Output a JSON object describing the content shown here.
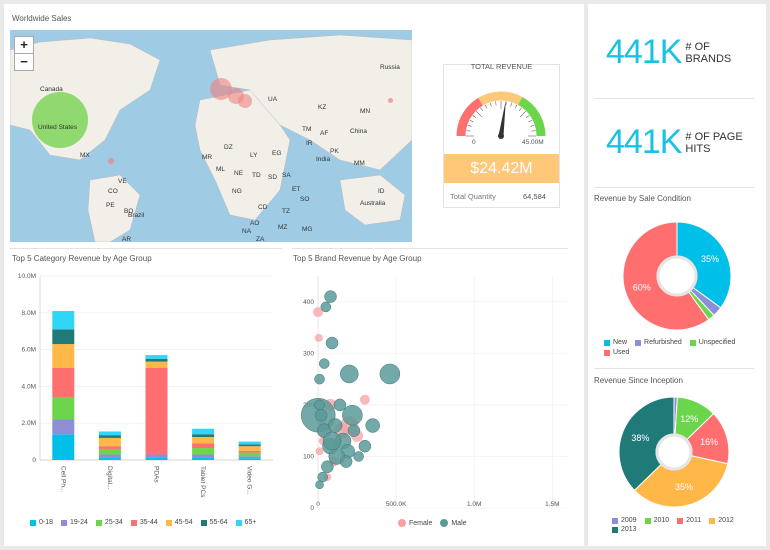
{
  "map_panel": {
    "title": "Worldwide Sales",
    "zoom_in": "+",
    "zoom_out": "−",
    "labels": [
      "Russia",
      "Canada",
      "United States",
      "China",
      "India",
      "Brazil",
      "Australia",
      "DZ",
      "LY",
      "EG",
      "SA",
      "IR",
      "PK",
      "KZ",
      "MN",
      "ML",
      "NE",
      "TD",
      "SD",
      "ET",
      "NG",
      "CD",
      "AO",
      "TZ",
      "ZA",
      "NA",
      "MZ",
      "MG",
      "VE",
      "CO",
      "PE",
      "BO",
      "AR",
      "MX",
      "TM",
      "AF",
      "UA",
      "MM",
      "ID",
      "SO",
      "MR"
    ]
  },
  "gauge": {
    "title": "TOTAL REVENUE",
    "min_label": "0",
    "max_label": "45.00M",
    "value": "$24.42M",
    "value_number": 24.42,
    "max_number": 45,
    "quantity_label": "Total Quantity",
    "quantity_value": "64,584"
  },
  "kpis": [
    {
      "value": "441K",
      "label": "# OF BRANDS"
    },
    {
      "value": "441K",
      "label": "# OF PAGE HITS"
    }
  ],
  "colors": {
    "cyan": "#00bfe8",
    "purple": "#8e8ed6",
    "green": "#6bd64b",
    "red": "#ff6f6f",
    "orange": "#ffb748",
    "teal": "#1f7a78",
    "lightcyan": "#2fd6f6",
    "female": "#f7a1a1",
    "male": "#5a9a99"
  },
  "chart_data": [
    {
      "type": "bar",
      "stacked": true,
      "title": "Top 5 Category Revenue by Age Group",
      "categories": [
        "Cell Ph...",
        "Digital...",
        "PDAs",
        "Tablet PCs",
        "Video G..."
      ],
      "ylim": [
        0,
        10000000
      ],
      "yticks": [
        "0",
        "2.0M",
        "4.0M",
        "6.0M",
        "8.0M",
        "10.0M"
      ],
      "ytick_values": [
        0,
        2000000,
        4000000,
        6000000,
        8000000,
        10000000
      ],
      "series": [
        {
          "name": "0-18",
          "color": "#00bfe8",
          "values": [
            1400000,
            150000,
            150000,
            150000,
            100000
          ]
        },
        {
          "name": "19-24",
          "color": "#8e8ed6",
          "values": [
            800000,
            150000,
            150000,
            150000,
            100000
          ]
        },
        {
          "name": "25-34",
          "color": "#6bd64b",
          "values": [
            1200000,
            300000,
            0,
            350000,
            200000
          ]
        },
        {
          "name": "35-44",
          "color": "#ff6f6f",
          "values": [
            1600000,
            150000,
            4700000,
            250000,
            100000
          ]
        },
        {
          "name": "45-54",
          "color": "#ffb748",
          "values": [
            1300000,
            450000,
            350000,
            350000,
            250000
          ]
        },
        {
          "name": "55-64",
          "color": "#1f7a78",
          "values": [
            800000,
            150000,
            150000,
            150000,
            100000
          ]
        },
        {
          "name": "65+",
          "color": "#2fd6f6",
          "values": [
            1000000,
            200000,
            200000,
            300000,
            150000
          ]
        }
      ]
    },
    {
      "type": "scatter",
      "title": "Top 5 Brand Revenue by Age Group",
      "xlim": [
        0,
        1600000
      ],
      "ylim": [
        0,
        450
      ],
      "xticks": [
        "0",
        "500.0K",
        "1.0M",
        "1.5M"
      ],
      "xtick_values": [
        0,
        500000,
        1000000,
        1500000
      ],
      "yticks": [
        "0",
        "100",
        "200",
        "300",
        "400"
      ],
      "ytick_values": [
        0,
        100,
        200,
        300,
        400
      ],
      "series": [
        {
          "name": "Female",
          "color": "#f7a1a1",
          "points": [
            [
              0,
              380,
              5
            ],
            [
              5,
              330,
              4
            ],
            [
              10,
              200,
              6
            ],
            [
              20,
              170,
              5
            ],
            [
              30,
              130,
              4
            ],
            [
              40,
              150,
              7
            ],
            [
              80,
              200,
              6
            ],
            [
              150,
              150,
              8
            ],
            [
              200,
              160,
              9
            ],
            [
              250,
              140,
              6
            ],
            [
              60,
              60,
              4
            ],
            [
              100,
              90,
              5
            ],
            [
              10,
              110,
              4
            ],
            [
              300,
              210,
              5
            ]
          ]
        },
        {
          "name": "Male",
          "color": "#5a9a99",
          "points": [
            [
              50,
              390,
              5
            ],
            [
              80,
              410,
              6
            ],
            [
              90,
              320,
              6
            ],
            [
              40,
              280,
              5
            ],
            [
              10,
              250,
              5
            ],
            [
              200,
              260,
              9
            ],
            [
              460,
              260,
              10
            ],
            [
              1500,
              180,
              17
            ],
            [
              10,
              200,
              5
            ],
            [
              20,
              180,
              6
            ],
            [
              40,
              150,
              7
            ],
            [
              80,
              120,
              8
            ],
            [
              110,
              160,
              7
            ],
            [
              160,
              130,
              8
            ],
            [
              190,
              110,
              7
            ],
            [
              230,
              150,
              6
            ],
            [
              260,
              100,
              5
            ],
            [
              300,
              120,
              6
            ],
            [
              120,
              100,
              8
            ],
            [
              60,
              80,
              6
            ],
            [
              30,
              60,
              5
            ],
            [
              10,
              45,
              4
            ],
            [
              140,
              200,
              6
            ],
            [
              220,
              180,
              10
            ],
            [
              180,
              90,
              6
            ],
            [
              90,
              130,
              9
            ],
            [
              350,
              160,
              7
            ]
          ]
        }
      ]
    },
    {
      "type": "pie",
      "title": "Revenue by Sale Condition",
      "donut": true,
      "slices": [
        {
          "name": "New",
          "value": 35,
          "label": "35%",
          "color": "#00bfe8"
        },
        {
          "name": "Refurbished",
          "value": 3,
          "label": "",
          "color": "#8e8ed6"
        },
        {
          "name": "Unspecified",
          "value": 2,
          "label": "",
          "color": "#6bd64b"
        },
        {
          "name": "Used",
          "value": 60,
          "label": "60%",
          "color": "#ff6f6f"
        }
      ]
    },
    {
      "type": "pie",
      "title": "Revenue Since Inception",
      "donut": true,
      "slices": [
        {
          "name": "2009",
          "value": 1,
          "label": "",
          "color": "#8e8ed6"
        },
        {
          "name": "2010",
          "value": 12,
          "label": "12%",
          "color": "#6bd64b"
        },
        {
          "name": "2011",
          "value": 16,
          "label": "16%",
          "color": "#ff6f6f"
        },
        {
          "name": "2012",
          "value": 35,
          "label": "35%",
          "color": "#ffb748"
        },
        {
          "name": "2013",
          "value": 38,
          "label": "38%",
          "color": "#1f7a78"
        }
      ]
    }
  ]
}
